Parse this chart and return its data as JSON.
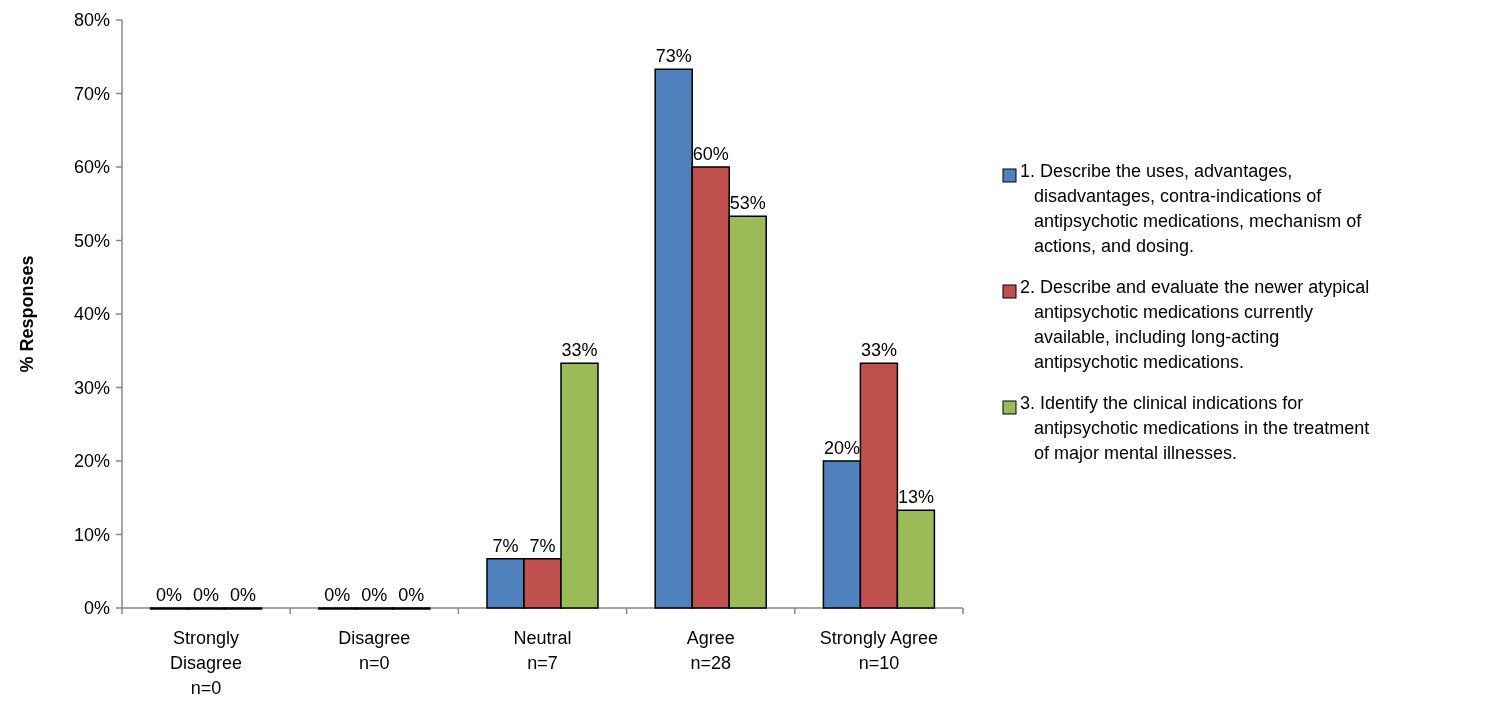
{
  "chart_data": {
    "type": "bar",
    "ylabel": "% Responses",
    "categories": [
      "Strongly\nDisagree\nn=0",
      "Disagree\nn=0",
      "Neutral\nn=7",
      "Agree\nn=28",
      "Strongly Agree\nn=10"
    ],
    "series": [
      {
        "name": "1. Describe the uses, advantages, disadvantages, contra-indications of antipsychotic medications, mechanism of actions, and dosing.",
        "color": "#4f81bd",
        "values": [
          0,
          0,
          6.7,
          73.3,
          20
        ],
        "value_labels": [
          "0%",
          "0%",
          "7%",
          "73%",
          "20%"
        ]
      },
      {
        "name": "2. Describe and evaluate the newer atypical antipsychotic medications currently available, including long-acting antipsychotic medications.",
        "color": "#c0504d",
        "values": [
          0,
          0,
          6.7,
          60,
          33.3
        ],
        "value_labels": [
          "0%",
          "0%",
          "7%",
          "60%",
          "33%"
        ]
      },
      {
        "name": "3. Identify the clinical indications for antipsychotic medications in the treatment of major mental illnesses.",
        "color": "#9bbb59",
        "values": [
          0,
          0,
          33.3,
          53.3,
          13.3
        ],
        "value_labels": [
          "0%",
          "0%",
          "33%",
          "53%",
          "13%"
        ]
      }
    ],
    "ylim": [
      0,
      80
    ],
    "yticks": [
      {
        "value": 0,
        "label": "0%"
      },
      {
        "value": 10,
        "label": "10%"
      },
      {
        "value": 20,
        "label": "20%"
      },
      {
        "value": 30,
        "label": "30%"
      },
      {
        "value": 40,
        "label": "40%"
      },
      {
        "value": 50,
        "label": "50%"
      },
      {
        "value": 60,
        "label": "60%"
      },
      {
        "value": 70,
        "label": "70%"
      },
      {
        "value": 80,
        "label": "80%"
      }
    ],
    "legend": "right"
  }
}
